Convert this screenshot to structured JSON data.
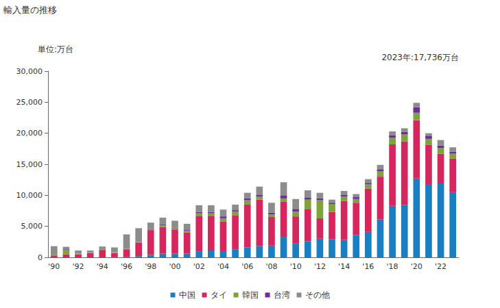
{
  "chart_data": {
    "type": "bar",
    "title": "輸入量の推移",
    "ylabel": "単位:万台",
    "annotations": [
      "2023年:17,736万台"
    ],
    "stacked": true,
    "grid": false,
    "legend": "bottom",
    "categories": [
      "'90",
      null,
      "'92",
      null,
      "'94",
      null,
      "'96",
      null,
      "'98",
      null,
      "'00",
      null,
      "'02",
      null,
      "'04",
      null,
      "'06",
      null,
      "'08",
      null,
      "'10",
      null,
      "'12",
      null,
      "'14",
      null,
      "'16",
      null,
      "'18",
      null,
      "'20",
      null,
      "'22",
      null
    ],
    "series": [
      {
        "name": "中国",
        "color": "#1a7ec2",
        "values": [
          0,
          0,
          0,
          0,
          0,
          100,
          100,
          200,
          400,
          600,
          600,
          600,
          900,
          1100,
          1000,
          1300,
          1600,
          1800,
          1900,
          3300,
          2300,
          2600,
          3000,
          2900,
          2800,
          3600,
          4100,
          6100,
          8300,
          8400,
          12700,
          11800,
          11900,
          10500
        ]
      },
      {
        "name": "タイ",
        "color": "#d6265e",
        "values": [
          300,
          500,
          500,
          700,
          1200,
          600,
          1200,
          2200,
          4000,
          4300,
          3900,
          3400,
          5800,
          5600,
          4800,
          5500,
          6900,
          7500,
          4600,
          5700,
          4300,
          5200,
          3300,
          4400,
          6300,
          5200,
          7000,
          6900,
          9900,
          10300,
          9400,
          6300,
          4800,
          5400
        ]
      },
      {
        "name": "韓国",
        "color": "#7ea33a",
        "values": [
          150,
          700,
          100,
          100,
          100,
          100,
          50,
          100,
          200,
          300,
          200,
          300,
          400,
          400,
          500,
          600,
          700,
          500,
          400,
          500,
          800,
          1500,
          2900,
          1300,
          700,
          600,
          700,
          900,
          1100,
          1100,
          1200,
          1000,
          900,
          800
        ]
      },
      {
        "name": "台湾",
        "color": "#6b2d9b",
        "values": [
          0,
          100,
          0,
          0,
          0,
          0,
          0,
          0,
          100,
          100,
          100,
          100,
          200,
          200,
          300,
          200,
          300,
          300,
          300,
          500,
          400,
          300,
          300,
          200,
          300,
          300,
          200,
          300,
          400,
          400,
          900,
          500,
          400,
          300
        ]
      },
      {
        "name": "その他",
        "color": "#8c8c8c",
        "values": [
          1350,
          400,
          500,
          300,
          450,
          800,
          2350,
          2200,
          900,
          1100,
          1100,
          1000,
          1100,
          1100,
          1100,
          900,
          900,
          1300,
          1600,
          2100,
          1600,
          1200,
          900,
          500,
          600,
          500,
          600,
          700,
          600,
          600,
          700,
          400,
          900,
          736
        ]
      }
    ],
    "ylim": [
      0,
      30000
    ],
    "yticks": [
      0,
      {
        "value": 5000,
        "label": "5,000"
      },
      {
        "value": 10000,
        "label": "10,000"
      },
      {
        "value": 15000,
        "label": "15,000"
      },
      {
        "value": 20000,
        "label": "20,000"
      },
      {
        "value": 25000,
        "label": "25,000"
      },
      {
        "value": 30000,
        "label": "30,000"
      }
    ]
  }
}
